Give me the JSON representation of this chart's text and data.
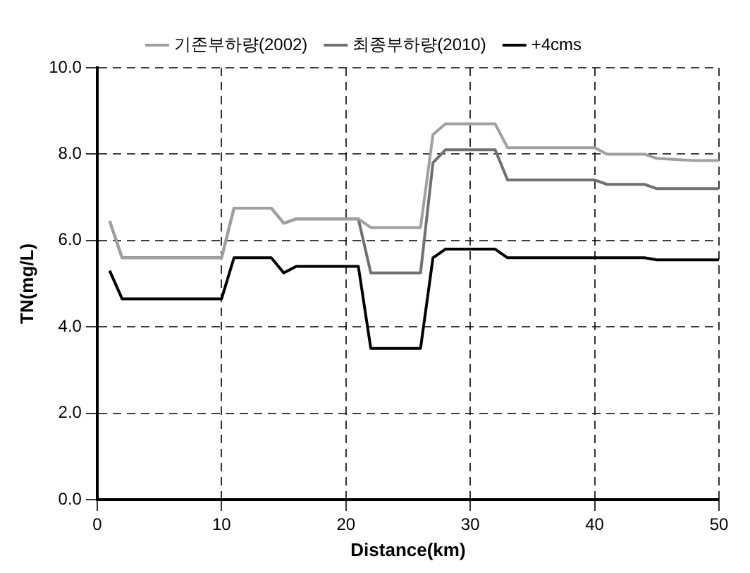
{
  "chart_data": {
    "type": "line",
    "xlabel": "Distance(km)",
    "ylabel": "TN(mg/L)",
    "xlim": [
      0,
      50
    ],
    "xticks": [
      0,
      10,
      20,
      30,
      40,
      50
    ],
    "ylim": [
      0,
      10
    ],
    "yticks": [
      {
        "value": 0,
        "label": "0.0"
      },
      {
        "value": 2,
        "label": "2.0"
      },
      {
        "value": 4,
        "label": "4.0"
      },
      {
        "value": 6,
        "label": "6.0"
      },
      {
        "value": 8,
        "label": "8.0"
      },
      {
        "value": 10,
        "label": "10.0"
      }
    ],
    "grid": true,
    "legend": "top",
    "marker": "none",
    "line_style": "solid",
    "series": [
      {
        "name": "기존부하량(2002)",
        "color": "#a0a0a0",
        "x": [
          1,
          2,
          10,
          11,
          14,
          15,
          16,
          21,
          22,
          26,
          27,
          28,
          32,
          33,
          40,
          41,
          44,
          45,
          48,
          50
        ],
        "values": [
          6.45,
          5.6,
          5.6,
          6.75,
          6.75,
          6.4,
          6.5,
          6.5,
          6.3,
          6.3,
          8.45,
          8.7,
          8.7,
          8.15,
          8.15,
          8.0,
          8.0,
          7.9,
          7.85,
          7.85
        ]
      },
      {
        "name": "최종부하량(2010)",
        "color": "#707070",
        "x": [
          1,
          2,
          10,
          11,
          14,
          15,
          16,
          21,
          22,
          26,
          27,
          28,
          32,
          33,
          40,
          41,
          44,
          45,
          50
        ],
        "values": [
          6.45,
          5.6,
          5.6,
          6.75,
          6.75,
          6.4,
          6.5,
          6.5,
          5.25,
          5.25,
          7.8,
          8.1,
          8.1,
          7.4,
          7.4,
          7.3,
          7.3,
          7.2,
          7.2
        ]
      },
      {
        "name": "+4cms",
        "color": "#000000",
        "x": [
          1,
          2,
          10,
          11,
          14,
          15,
          16,
          21,
          22,
          26,
          27,
          28,
          32,
          33,
          44,
          45,
          50
        ],
        "values": [
          5.3,
          4.65,
          4.65,
          5.6,
          5.6,
          5.25,
          5.4,
          5.4,
          3.5,
          3.5,
          5.6,
          5.8,
          5.8,
          5.6,
          5.6,
          5.55,
          5.55
        ]
      }
    ]
  }
}
